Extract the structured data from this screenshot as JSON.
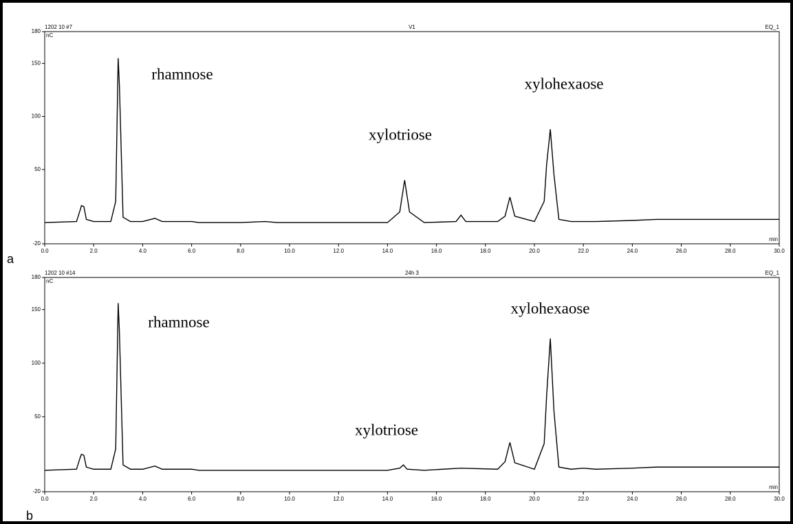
{
  "chart_data": [
    {
      "type": "line",
      "panel_label": "a",
      "header_left": "1202 10 #7",
      "title": "V1",
      "header_right": "EQ_1",
      "ylabel": "nC",
      "xlabel": "min",
      "annotations": [
        "rhamnose",
        "xylotriose",
        "xylohexaose"
      ],
      "xlim": [
        0,
        30
      ],
      "ylim": [
        -20,
        180
      ],
      "xticks": [
        {
          "value": 0,
          "label": "0.0"
        },
        {
          "value": 2,
          "label": "2.0"
        },
        {
          "value": 4,
          "label": "4.0"
        },
        {
          "value": 6,
          "label": "6.0"
        },
        {
          "value": 8,
          "label": "8.0"
        },
        {
          "value": 10,
          "label": "10.0"
        },
        {
          "value": 12,
          "label": "12.0"
        },
        {
          "value": 14,
          "label": "14.0"
        },
        {
          "value": 16,
          "label": "16.0"
        },
        {
          "value": 18,
          "label": "18.0"
        },
        {
          "value": 20,
          "label": "20.0"
        },
        {
          "value": 22,
          "label": "22.0"
        },
        {
          "value": 24,
          "label": "24.0"
        },
        {
          "value": 26,
          "label": "26.0"
        },
        {
          "value": 28,
          "label": "28.0"
        },
        {
          "value": 30,
          "label": "30.0"
        }
      ],
      "yticks": [
        -20,
        50,
        100,
        150,
        180
      ],
      "series": [
        {
          "color": "#000000",
          "x": [
            0,
            1.3,
            1.45,
            1.5,
            1.6,
            1.7,
            2.0,
            2.7,
            2.9,
            3.0,
            3.05,
            3.2,
            3.5,
            4.0,
            4.5,
            4.8,
            5.5,
            6.0,
            6.3,
            8.0,
            9.0,
            9.5,
            12,
            14.0,
            14.5,
            14.7,
            14.9,
            15.5,
            16.8,
            17.0,
            17.2,
            18.5,
            18.8,
            19.0,
            19.2,
            20.0,
            20.4,
            20.5,
            20.65,
            20.8,
            21.0,
            21.5,
            22.0,
            22.5,
            24.0,
            25.0,
            26.0,
            28.0,
            30.0
          ],
          "values": [
            0,
            1,
            12,
            16,
            15,
            3,
            1,
            1,
            20,
            155,
            130,
            5,
            1,
            1,
            4,
            1,
            1,
            1,
            0,
            0,
            1,
            0,
            0,
            0,
            10,
            40,
            10,
            0,
            1,
            7,
            1,
            1,
            6,
            24,
            6,
            1,
            20,
            55,
            88,
            45,
            3,
            1,
            1,
            1,
            2,
            3,
            3,
            3,
            3
          ]
        }
      ]
    },
    {
      "type": "line",
      "panel_label": "b",
      "header_left": "1202 10 #14",
      "title": "24h 3",
      "header_right": "EQ_1",
      "ylabel": "nC",
      "xlabel": "min",
      "annotations": [
        "rhamnose",
        "xylotriose",
        "xylohexaose"
      ],
      "xlim": [
        0,
        30
      ],
      "ylim": [
        -20,
        180
      ],
      "xticks": [
        {
          "value": 0,
          "label": "0.0"
        },
        {
          "value": 2,
          "label": "2.0"
        },
        {
          "value": 4,
          "label": "4.0"
        },
        {
          "value": 6,
          "label": "6.0"
        },
        {
          "value": 8,
          "label": "8.0"
        },
        {
          "value": 10,
          "label": "10.0"
        },
        {
          "value": 12,
          "label": "12.0"
        },
        {
          "value": 14,
          "label": "14.0"
        },
        {
          "value": 16,
          "label": "16.0"
        },
        {
          "value": 18,
          "label": "18.0"
        },
        {
          "value": 20,
          "label": "20.0"
        },
        {
          "value": 22,
          "label": "22.0"
        },
        {
          "value": 24,
          "label": "24.0"
        },
        {
          "value": 26,
          "label": "26.0"
        },
        {
          "value": 28,
          "label": "28.0"
        },
        {
          "value": 30,
          "label": "30.0"
        }
      ],
      "yticks": [
        -20,
        50,
        100,
        150,
        180
      ],
      "series": [
        {
          "color": "#000000",
          "x": [
            0,
            1.3,
            1.45,
            1.5,
            1.6,
            1.7,
            2.0,
            2.7,
            2.9,
            3.0,
            3.05,
            3.2,
            3.5,
            4.0,
            4.5,
            4.8,
            5.5,
            6.0,
            6.3,
            8.0,
            9.0,
            12,
            14.0,
            14.5,
            14.65,
            14.8,
            15.5,
            17.0,
            18.5,
            18.8,
            19.0,
            19.2,
            20.0,
            20.4,
            20.5,
            20.65,
            20.8,
            21.0,
            21.5,
            22.0,
            22.5,
            24.0,
            25.0,
            26.0,
            28.0,
            30.0
          ],
          "values": [
            0,
            1,
            12,
            15,
            14,
            3,
            1,
            1,
            20,
            156,
            130,
            5,
            1,
            1,
            4,
            1,
            1,
            1,
            0,
            0,
            0,
            0,
            0,
            2,
            5,
            1,
            0,
            2,
            1,
            8,
            26,
            7,
            1,
            25,
            70,
            123,
            55,
            3,
            1,
            2,
            1,
            2,
            3,
            3,
            3,
            3
          ]
        }
      ]
    }
  ]
}
